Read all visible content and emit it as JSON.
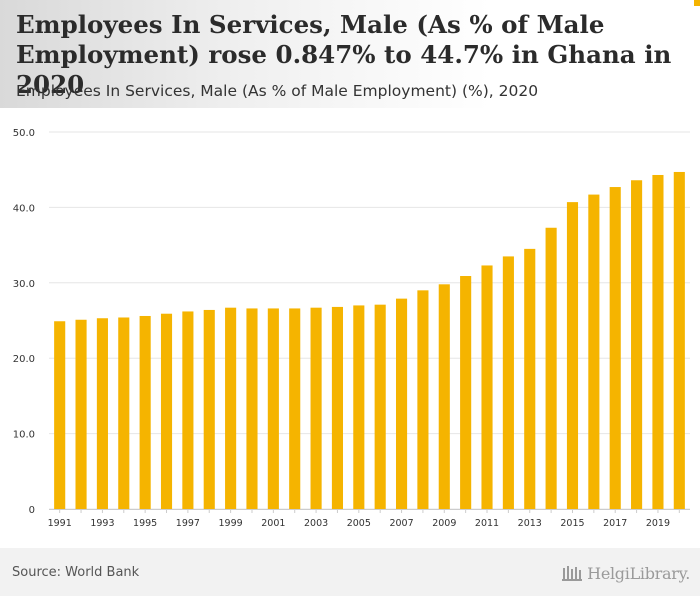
{
  "header": {
    "title": "Employees In Services, Male (As % of Male Employment) rose 0.847% to 44.7% in Ghana in 2020",
    "subtitle": "Employees In Services, Male (As % of Male Employment) (%), 2020"
  },
  "footer": {
    "source": "Source: World Bank",
    "logo_text": "HelgiLibrary.",
    "logo_icon": "library-columns-icon"
  },
  "colors": {
    "bar": "#f5b400",
    "grid": "#e6e6e6",
    "axis_text": "#333333"
  },
  "chart_data": {
    "type": "bar",
    "title": "Employees In Services, Male (As % of Male Employment) (%), 2020",
    "xlabel": "",
    "ylabel": "",
    "ylim": [
      0,
      50
    ],
    "yticks": [
      0,
      10,
      20,
      30,
      40,
      50
    ],
    "ytick_labels": [
      "0",
      "10.0",
      "20.0",
      "30.0",
      "40.0",
      "50.0"
    ],
    "categories": [
      "1991",
      "1992",
      "1993",
      "1994",
      "1995",
      "1996",
      "1997",
      "1998",
      "1999",
      "2000",
      "2001",
      "2002",
      "2003",
      "2004",
      "2005",
      "2006",
      "2007",
      "2008",
      "2009",
      "2010",
      "2011",
      "2012",
      "2013",
      "2014",
      "2015",
      "2016",
      "2017",
      "2018",
      "2019",
      "2020"
    ],
    "xtick_labels": [
      "1991",
      "1993",
      "1995",
      "1997",
      "1999",
      "2001",
      "2003",
      "2005",
      "2007",
      "2009",
      "2011",
      "2013",
      "2015",
      "2017",
      "2019"
    ],
    "values": [
      24.9,
      25.1,
      25.3,
      25.4,
      25.6,
      25.9,
      26.2,
      26.4,
      26.7,
      26.6,
      26.6,
      26.6,
      26.7,
      26.8,
      27.0,
      27.1,
      27.9,
      29.0,
      29.8,
      30.9,
      32.3,
      33.5,
      34.5,
      37.3,
      40.7,
      41.7,
      42.7,
      43.6,
      44.3,
      44.7
    ]
  }
}
